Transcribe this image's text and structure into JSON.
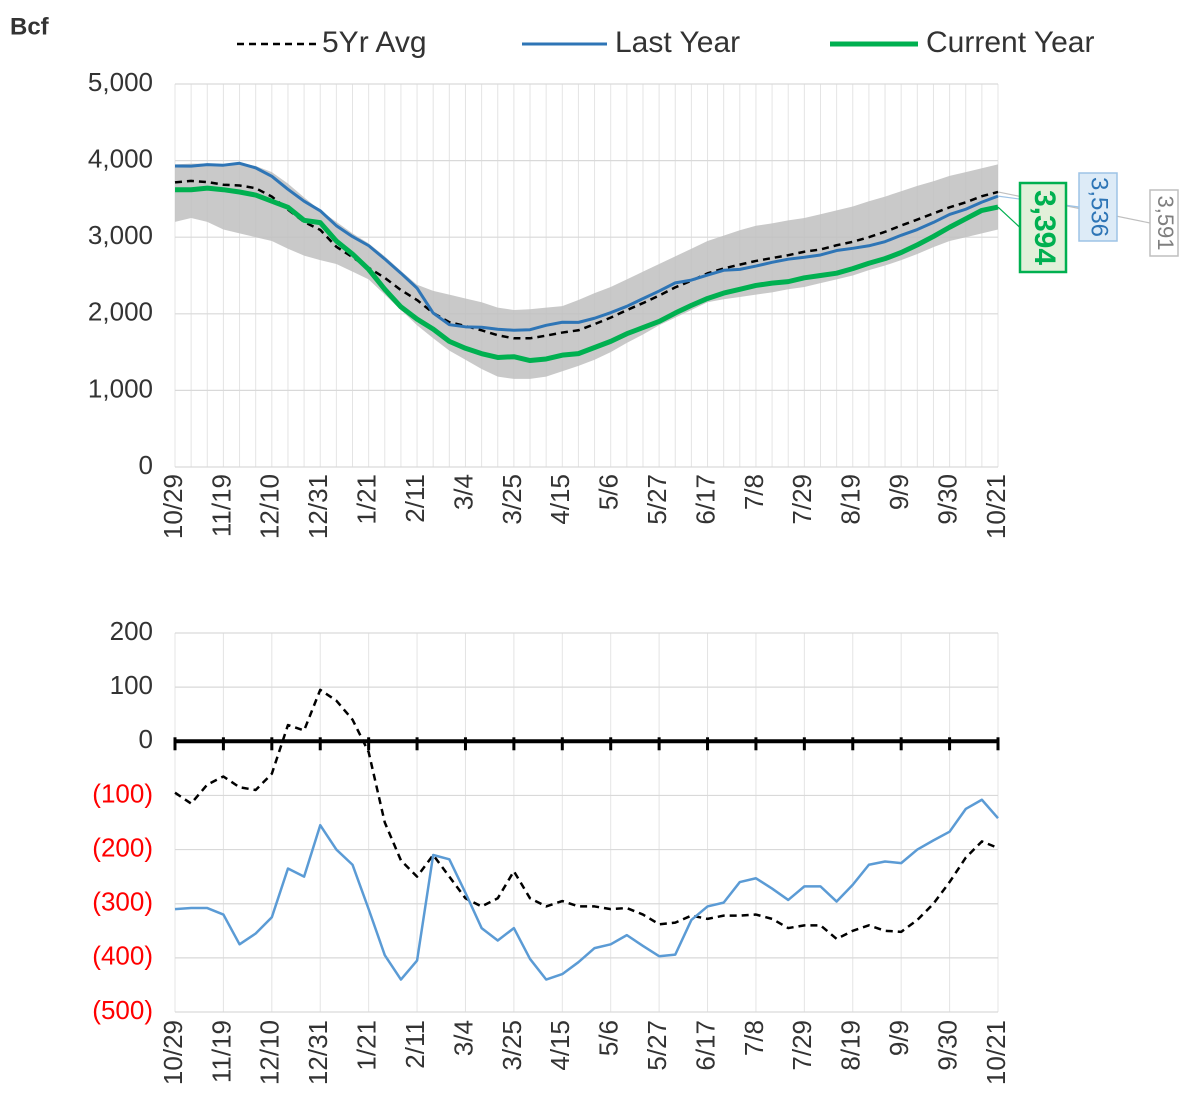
{
  "chart_data": [
    {
      "type": "line",
      "y_label": "Bcf",
      "categories": [
        "10/29",
        null,
        null,
        "11/19",
        null,
        null,
        "12/10",
        null,
        null,
        "12/31",
        null,
        null,
        "1/21",
        null,
        null,
        "2/11",
        null,
        null,
        "3/4",
        null,
        null,
        "3/25",
        null,
        null,
        "4/15",
        null,
        null,
        "5/6",
        null,
        null,
        "5/27",
        null,
        null,
        "6/17",
        null,
        null,
        "7/8",
        null,
        null,
        "7/29",
        null,
        null,
        "8/19",
        null,
        null,
        "9/9",
        null,
        null,
        "9/30",
        null,
        null,
        "10/21"
      ],
      "ylim": [
        0,
        5000
      ],
      "yticks": [
        0,
        {
          "value": 1000,
          "label": "1,000"
        },
        {
          "value": 2000,
          "label": "2,000"
        },
        {
          "value": 3000,
          "label": "3,000"
        },
        {
          "value": 4000,
          "label": "4,000"
        },
        {
          "value": 5000,
          "label": "5,000"
        }
      ],
      "grid": true,
      "xgrid": "all",
      "band": {
        "color": "#bfbfbf",
        "high": [
          3950,
          3960,
          3960,
          3950,
          3970,
          3930,
          3850,
          3700,
          3520,
          3350,
          3200,
          3050,
          2920,
          2750,
          2560,
          2380,
          2300,
          2250,
          2200,
          2150,
          2080,
          2050,
          2060,
          2080,
          2100,
          2180,
          2270,
          2350,
          2450,
          2550,
          2650,
          2750,
          2850,
          2950,
          3020,
          3090,
          3150,
          3180,
          3220,
          3250,
          3300,
          3350,
          3400,
          3470,
          3530,
          3600,
          3670,
          3730,
          3800,
          3850,
          3900,
          3950
        ],
        "low": [
          3200,
          3250,
          3200,
          3100,
          3050,
          3000,
          2950,
          2850,
          2760,
          2700,
          2650,
          2550,
          2450,
          2250,
          2050,
          1850,
          1680,
          1520,
          1400,
          1280,
          1180,
          1150,
          1150,
          1180,
          1250,
          1320,
          1400,
          1500,
          1620,
          1730,
          1850,
          1950,
          2050,
          2150,
          2190,
          2220,
          2250,
          2280,
          2320,
          2350,
          2400,
          2450,
          2500,
          2570,
          2630,
          2700,
          2780,
          2870,
          2950,
          3000,
          3050,
          3100
        ]
      },
      "series": [
        {
          "name": "5Yr Avg",
          "color": "#000000",
          "dash": true,
          "width": 2.5,
          "values": [
            3715,
            3735,
            3720,
            3685,
            3675,
            3640,
            3530,
            3360,
            3200,
            3095,
            2875,
            2740,
            2600,
            2470,
            2310,
            2180,
            2010,
            1890,
            1840,
            1785,
            1720,
            1680,
            1680,
            1715,
            1755,
            1785,
            1865,
            1950,
            2048,
            2140,
            2238,
            2345,
            2432,
            2528,
            2592,
            2642,
            2690,
            2728,
            2765,
            2810,
            2840,
            2895,
            2940,
            3000,
            3070,
            3152,
            3230,
            3310,
            3390,
            3455,
            3535,
            3591
          ],
          "value_labels": [
            null,
            null,
            null,
            null,
            null,
            null,
            null,
            null,
            null,
            null,
            null,
            null,
            null,
            null,
            null,
            null,
            null,
            null,
            null,
            null,
            null,
            null,
            null,
            null,
            null,
            null,
            null,
            null,
            null,
            null,
            null,
            null,
            null,
            null,
            null,
            null,
            null,
            null,
            null,
            null,
            null,
            null,
            null,
            null,
            null,
            null,
            null,
            null,
            null,
            null,
            null,
            "3,591"
          ]
        },
        {
          "name": "Last Year",
          "color": "#2e75b6",
          "width": 3,
          "values": [
            3930,
            3928,
            3948,
            3940,
            3965,
            3905,
            3795,
            3625,
            3470,
            3345,
            3150,
            3008,
            2890,
            2715,
            2530,
            2335,
            2010,
            1858,
            1830,
            1825,
            1798,
            1785,
            1792,
            1850,
            1890,
            1888,
            1942,
            2015,
            2098,
            2198,
            2297,
            2404,
            2440,
            2505,
            2568,
            2580,
            2623,
            2672,
            2713,
            2738,
            2768,
            2826,
            2855,
            2888,
            2942,
            3025,
            3100,
            3193,
            3297,
            3365,
            3458,
            3536
          ],
          "value_labels": [
            null,
            null,
            null,
            null,
            null,
            null,
            null,
            null,
            null,
            null,
            null,
            null,
            null,
            null,
            null,
            null,
            null,
            null,
            null,
            null,
            null,
            null,
            null,
            null,
            null,
            null,
            null,
            null,
            null,
            null,
            null,
            null,
            null,
            null,
            null,
            null,
            null,
            null,
            null,
            null,
            null,
            null,
            null,
            null,
            null,
            null,
            null,
            null,
            null,
            null,
            null,
            "3,536"
          ]
        },
        {
          "name": "Current Year",
          "color": "#00b050",
          "width": 5,
          "values": [
            3620,
            3620,
            3640,
            3620,
            3590,
            3550,
            3470,
            3390,
            3220,
            3190,
            2950,
            2780,
            2580,
            2320,
            2090,
            1930,
            1800,
            1640,
            1550,
            1480,
            1430,
            1440,
            1390,
            1410,
            1460,
            1480,
            1560,
            1640,
            1740,
            1820,
            1900,
            2010,
            2110,
            2200,
            2270,
            2320,
            2370,
            2400,
            2420,
            2470,
            2500,
            2530,
            2590,
            2660,
            2720,
            2800,
            2900,
            3010,
            3130,
            3240,
            3350,
            3394
          ],
          "value_labels": [
            null,
            null,
            null,
            null,
            null,
            null,
            null,
            null,
            null,
            null,
            null,
            null,
            null,
            null,
            null,
            null,
            null,
            null,
            null,
            null,
            null,
            null,
            null,
            null,
            null,
            null,
            null,
            null,
            null,
            null,
            null,
            null,
            null,
            null,
            null,
            null,
            null,
            null,
            null,
            null,
            null,
            null,
            null,
            null,
            null,
            null,
            null,
            null,
            null,
            null,
            null,
            "3,394"
          ]
        }
      ]
    },
    {
      "type": "line",
      "categories": [
        "10/29",
        null,
        null,
        "11/19",
        null,
        null,
        "12/10",
        null,
        null,
        "12/31",
        null,
        null,
        "1/21",
        null,
        null,
        "2/11",
        null,
        null,
        "3/4",
        null,
        null,
        "3/25",
        null,
        null,
        "4/15",
        null,
        null,
        "5/6",
        null,
        null,
        "5/27",
        null,
        null,
        "6/17",
        null,
        null,
        "7/8",
        null,
        null,
        "7/29",
        null,
        null,
        "8/19",
        null,
        null,
        "9/9",
        null,
        null,
        "9/30",
        null,
        null,
        "10/21"
      ],
      "ylim": [
        -500,
        200
      ],
      "yticks": [
        {
          "value": -500,
          "label": "(500)"
        },
        {
          "value": -400,
          "label": "(400)"
        },
        {
          "value": -300,
          "label": "(300)"
        },
        {
          "value": -200,
          "label": "(200)"
        },
        {
          "value": -100,
          "label": "(100)"
        },
        0,
        100,
        200
      ],
      "negative_tick_color": "#ff0000",
      "grid": true,
      "xgrid": "labeled",
      "zero_line": true,
      "series": [
        {
          "color": "#000000",
          "dash": true,
          "width": 2.5,
          "values": [
            -95,
            -115,
            -80,
            -65,
            -85,
            -90,
            -60,
            30,
            20,
            95,
            75,
            40,
            -20,
            -150,
            -220,
            -250,
            -210,
            -250,
            -290,
            -305,
            -290,
            -240,
            -290,
            -305,
            -295,
            -305,
            -305,
            -310,
            -308,
            -320,
            -338,
            -335,
            -322,
            -328,
            -322,
            -322,
            -320,
            -328,
            -345,
            -340,
            -340,
            -365,
            -350,
            -340,
            -350,
            -352,
            -330,
            -300,
            -260,
            -215,
            -185,
            -197
          ]
        },
        {
          "color": "#5b9bd5",
          "width": 2.5,
          "values": [
            -310,
            -308,
            -308,
            -320,
            -375,
            -355,
            -325,
            -235,
            -250,
            -155,
            -200,
            -228,
            -310,
            -395,
            -440,
            -405,
            -210,
            -218,
            -280,
            -345,
            -368,
            -345,
            -402,
            -440,
            -430,
            -408,
            -382,
            -375,
            -358,
            -378,
            -397,
            -394,
            -330,
            -305,
            -298,
            -260,
            -253,
            -272,
            -293,
            -268,
            -268,
            -296,
            -265,
            -228,
            -222,
            -225,
            -200,
            -183,
            -167,
            -125,
            -108,
            -142
          ]
        }
      ]
    }
  ]
}
